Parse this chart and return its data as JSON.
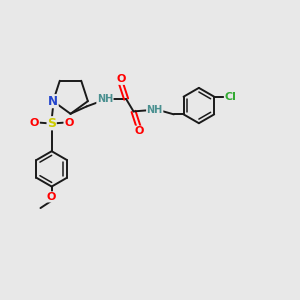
{
  "bg_color": "#e8e8e8",
  "bond_color": "#1a1a1a",
  "colors": {
    "N": "#2244cc",
    "O": "#ff0000",
    "S": "#cccc00",
    "Cl": "#33aa33",
    "NH": "#4a9090",
    "C": "#1a1a1a"
  },
  "lw": 1.4,
  "fs": 7.5
}
